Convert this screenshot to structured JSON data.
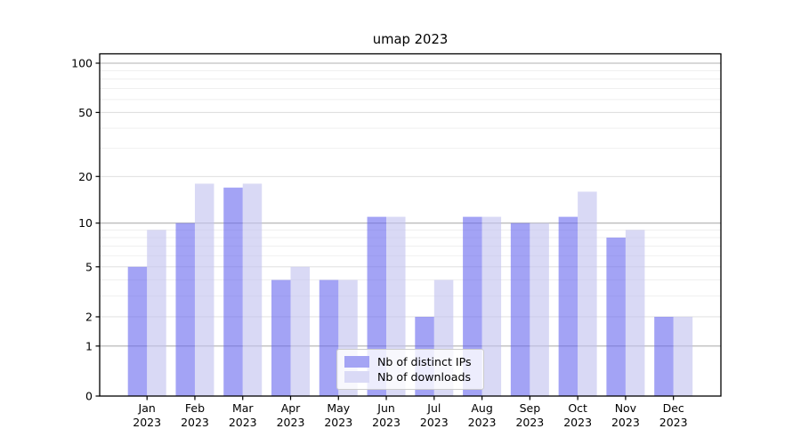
{
  "window": {
    "title": "umap 2023"
  },
  "chart_data": {
    "type": "bar",
    "title": "umap 2023",
    "categories": [
      "Jan 2023",
      "Feb 2023",
      "Mar 2023",
      "Apr 2023",
      "May 2023",
      "Jun 2023",
      "Jul 2023",
      "Aug 2023",
      "Sep 2023",
      "Oct 2023",
      "Nov 2023",
      "Dec 2023"
    ],
    "x_tick_months": [
      "Jan",
      "Feb",
      "Mar",
      "Apr",
      "May",
      "Jun",
      "Jul",
      "Aug",
      "Sep",
      "Oct",
      "Nov",
      "Dec"
    ],
    "x_tick_year": "2023",
    "series": [
      {
        "name": "Nb of distinct IPs",
        "color": "#a4a4f4",
        "fill": "rgba(101,101,239,0.6)",
        "values": [
          5,
          10,
          17,
          4,
          4,
          11,
          2,
          11,
          10,
          11,
          8,
          2
        ]
      },
      {
        "name": "Nb of downloads",
        "color": "#dadaf6",
        "fill": "rgba(194,194,239,0.62)",
        "values": [
          9,
          18,
          18,
          5,
          4,
          11,
          4,
          11,
          10,
          16,
          9,
          2
        ]
      }
    ],
    "y_axis": {
      "scale": "log1p",
      "range": [
        0,
        114
      ],
      "ticks": [
        {
          "v": 0,
          "label": "0"
        },
        {
          "v": 1,
          "label": "1"
        },
        {
          "v": 2,
          "label": "2"
        },
        {
          "v": 5,
          "label": "5"
        },
        {
          "v": 10,
          "label": "10"
        },
        {
          "v": 20,
          "label": "20"
        },
        {
          "v": 50,
          "label": "50"
        },
        {
          "v": 100,
          "label": "100"
        }
      ],
      "minor": [
        3,
        4,
        6,
        7,
        8,
        9,
        30,
        40,
        60,
        70,
        80,
        90
      ],
      "strong_grid": [
        1,
        10,
        100
      ]
    },
    "xlabel": "",
    "ylabel": "",
    "grid": true,
    "legend_position": "lower center"
  },
  "colors": {
    "background": "#ffffff",
    "axis": "#000000",
    "grid_major": "#b0b0b0",
    "grid_mid": "#dcdcdc",
    "grid_minor": "#ededed"
  }
}
